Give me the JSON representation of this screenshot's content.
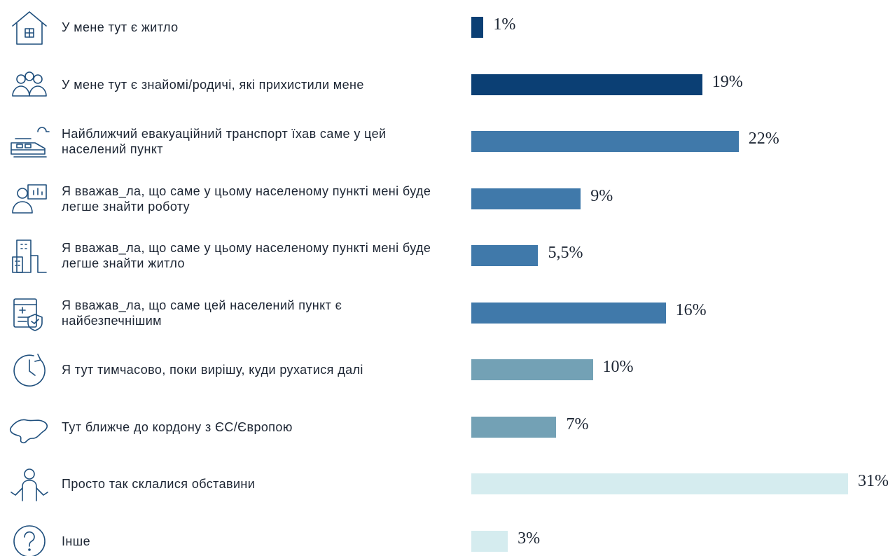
{
  "chart_data": {
    "type": "bar",
    "orientation": "horizontal",
    "categories": [
      "У мене тут є житло",
      "У мене тут є знайомі/родичі, які прихистили мене",
      "Найближчий евакуаційний транспорт їхав саме у цей населений пункт",
      "Я вважав_ла, що саме у цьому населеному пункті мені буде легше знайти роботу",
      "Я вважав_ла, що саме у цьому населеному пункті мені буде легше знайти житло",
      "Я вважав_ла, що саме цей населений пункт є найбезпечнішим",
      "Я тут тимчасово, поки вирішу, куди рухатися далі",
      "Тут ближче до кордону з ЄС/Європою",
      "Просто так склалися обставини",
      "Інше"
    ],
    "values": [
      1,
      19,
      22,
      9,
      5.5,
      16,
      10,
      7,
      31,
      3
    ],
    "value_labels": [
      "1%",
      "19%",
      "22%",
      "9%",
      "5,5%",
      "16%",
      "10%",
      "7%",
      "31%",
      "3%"
    ],
    "colors": [
      "#0b3f74",
      "#0b3f74",
      "#4079aa",
      "#4079aa",
      "#4079aa",
      "#4079aa",
      "#73a1b5",
      "#73a1b5",
      "#d5ecef",
      "#d5ecef"
    ]
  }
}
